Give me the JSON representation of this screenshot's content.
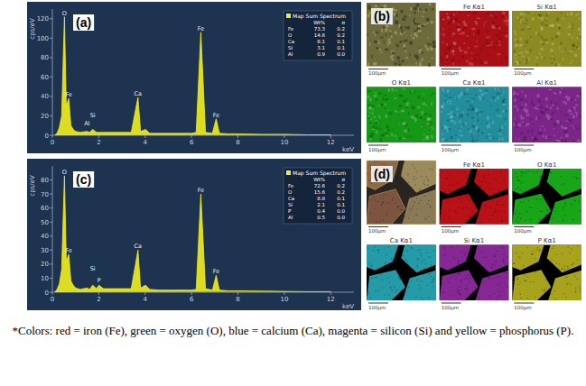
{
  "chart_data": [
    {
      "type": "area",
      "title": "(a)",
      "x_label": "keV",
      "y_label": "cps/eV",
      "x": [
        0.1,
        0.2,
        0.3,
        0.4,
        0.52,
        0.6,
        0.705,
        0.8,
        0.9,
        1.0,
        1.2,
        1.49,
        1.6,
        1.74,
        1.9,
        2.2,
        2.6,
        3.0,
        3.4,
        3.69,
        3.8,
        4.01,
        4.2,
        4.6,
        5.0,
        5.5,
        6.0,
        6.2,
        6.4,
        6.6,
        6.9,
        7.06,
        7.2,
        7.6,
        8.0,
        9.0,
        10.0,
        11.0,
        12.0
      ],
      "series": [
        {
          "name": "Map Sum Spectrum",
          "color": "#f2ee1e",
          "values": [
            0,
            2,
            8,
            20,
            122,
            30,
            38,
            10,
            6,
            4,
            3,
            4,
            3,
            6,
            3,
            3,
            3,
            3,
            3,
            39,
            4,
            6,
            2,
            2,
            2,
            2,
            2,
            3,
            106,
            3,
            2,
            17,
            2,
            1.5,
            1.5,
            1,
            1,
            0.5,
            0.5
          ]
        }
      ],
      "xlim": [
        0,
        13
      ],
      "ylim": [
        0,
        130
      ],
      "xticks": [
        0,
        2,
        4,
        6,
        8,
        10,
        12
      ],
      "yticks": [
        0,
        20,
        40,
        60,
        80,
        100,
        120
      ],
      "grid": false,
      "legend": "upper right",
      "annotations": [
        {
          "text": "O",
          "x": 0.52,
          "y": 122
        },
        {
          "text": "Fe",
          "x": 0.705,
          "y": 38
        },
        {
          "text": "Al",
          "x": 1.49,
          "y": 8
        },
        {
          "text": "Si",
          "x": 1.74,
          "y": 17
        },
        {
          "text": "Ca",
          "x": 3.69,
          "y": 39
        },
        {
          "text": "Fe",
          "x": 6.4,
          "y": 106
        },
        {
          "text": "Fe",
          "x": 7.06,
          "y": 17
        }
      ],
      "composition": {
        "columns": [
          "Wt%",
          "σ"
        ],
        "rows": [
          [
            "Fe",
            "73.3",
            "0.2"
          ],
          [
            "O",
            "14.6",
            "0.2"
          ],
          [
            "Ca",
            "8.1",
            "0.1"
          ],
          [
            "Si",
            "3.1",
            "0.1"
          ],
          [
            "Al",
            "0.9",
            "0.0"
          ]
        ]
      }
    },
    {
      "type": "area",
      "title": "(c)",
      "x_label": "keV",
      "y_label": "cps/eV",
      "x": [
        0.1,
        0.2,
        0.3,
        0.4,
        0.52,
        0.6,
        0.705,
        0.8,
        0.9,
        1.0,
        1.2,
        1.49,
        1.6,
        1.74,
        1.9,
        2.01,
        2.2,
        2.6,
        3.0,
        3.4,
        3.69,
        3.8,
        4.01,
        4.2,
        4.6,
        5.0,
        5.5,
        6.0,
        6.2,
        6.4,
        6.6,
        6.9,
        7.06,
        7.2,
        7.6,
        8.0,
        9.0,
        10.0,
        11.0,
        12.0
      ],
      "series": [
        {
          "name": "Map Sum Spectrum",
          "color": "#f2ee1e",
          "values": [
            0,
            2,
            6,
            16,
            83,
            22,
            27,
            8,
            5,
            3,
            2,
            3,
            2,
            5,
            2.5,
            5,
            2.5,
            2.5,
            2.5,
            2.5,
            30,
            3,
            5,
            2,
            1.5,
            1.5,
            1.5,
            1.5,
            2,
            70,
            2.5,
            1.5,
            12,
            1.5,
            1,
            1,
            0.8,
            0.6,
            0.4,
            0.4
          ]
        }
      ],
      "xlim": [
        0,
        13
      ],
      "ylim": [
        0,
        90
      ],
      "xticks": [
        0,
        2,
        4,
        6,
        8,
        10,
        12
      ],
      "yticks": [
        0,
        10,
        20,
        30,
        40,
        50,
        60,
        70,
        80
      ],
      "grid": false,
      "legend": "upper right",
      "annotations": [
        {
          "text": "O",
          "x": 0.52,
          "y": 83
        },
        {
          "text": "Fe",
          "x": 0.705,
          "y": 27
        },
        {
          "text": "Si",
          "x": 1.74,
          "y": 14
        },
        {
          "text": "P",
          "x": 2.01,
          "y": 6
        },
        {
          "text": "Ca",
          "x": 3.69,
          "y": 30
        },
        {
          "text": "Fe",
          "x": 6.4,
          "y": 70
        },
        {
          "text": "Fe",
          "x": 7.06,
          "y": 12
        }
      ],
      "composition": {
        "columns": [
          "Wt%",
          "σ"
        ],
        "rows": [
          [
            "Fe",
            "72.6",
            "0.2"
          ],
          [
            "O",
            "15.6",
            "0.2"
          ],
          [
            "Ca",
            "8.8",
            "0.1"
          ],
          [
            "Si",
            "2.1",
            "0.1"
          ],
          [
            "P",
            "0.4",
            "0.0"
          ],
          [
            "Al",
            "0.5",
            "0.0"
          ]
        ]
      }
    }
  ],
  "maps": [
    {
      "label": "(b)",
      "style": "mottled",
      "electron_image": {
        "scale": "100µm"
      },
      "images": [
        {
          "title": "Fe Kα1",
          "color": "#d8141c",
          "scale": "100µm"
        },
        {
          "title": "Si Kα1",
          "color": "#b3b22c",
          "scale": "100µm"
        },
        {
          "title": "O Kα1",
          "color": "#1cc21c",
          "scale": "100µm"
        },
        {
          "title": "Ca Kα1",
          "color": "#2cb6c6",
          "scale": "100µm"
        },
        {
          "title": "Al Kα1",
          "color": "#9e2fae",
          "scale": "100µm"
        }
      ]
    },
    {
      "label": "(d)",
      "style": "particles",
      "electron_image": {
        "scale": "100µm"
      },
      "images": [
        {
          "title": "Fe Kα1",
          "color": "#d8141c",
          "scale": "100µm"
        },
        {
          "title": "O Kα1",
          "color": "#1cc21c",
          "scale": "100µm"
        },
        {
          "title": "Ca Kα1",
          "color": "#2cb6c6",
          "scale": "100µm"
        },
        {
          "title": "Si Kα1",
          "color": "#9e2fae",
          "scale": "100µm"
        },
        {
          "title": "P Kα1",
          "color": "#c6bf22",
          "scale": "100µm"
        }
      ]
    }
  ],
  "caption": "*Colors: red = iron (Fe), green = oxygen (O), blue = calcium (Ca), magenta = silicon (Si) and yellow = phosphorus (P)."
}
